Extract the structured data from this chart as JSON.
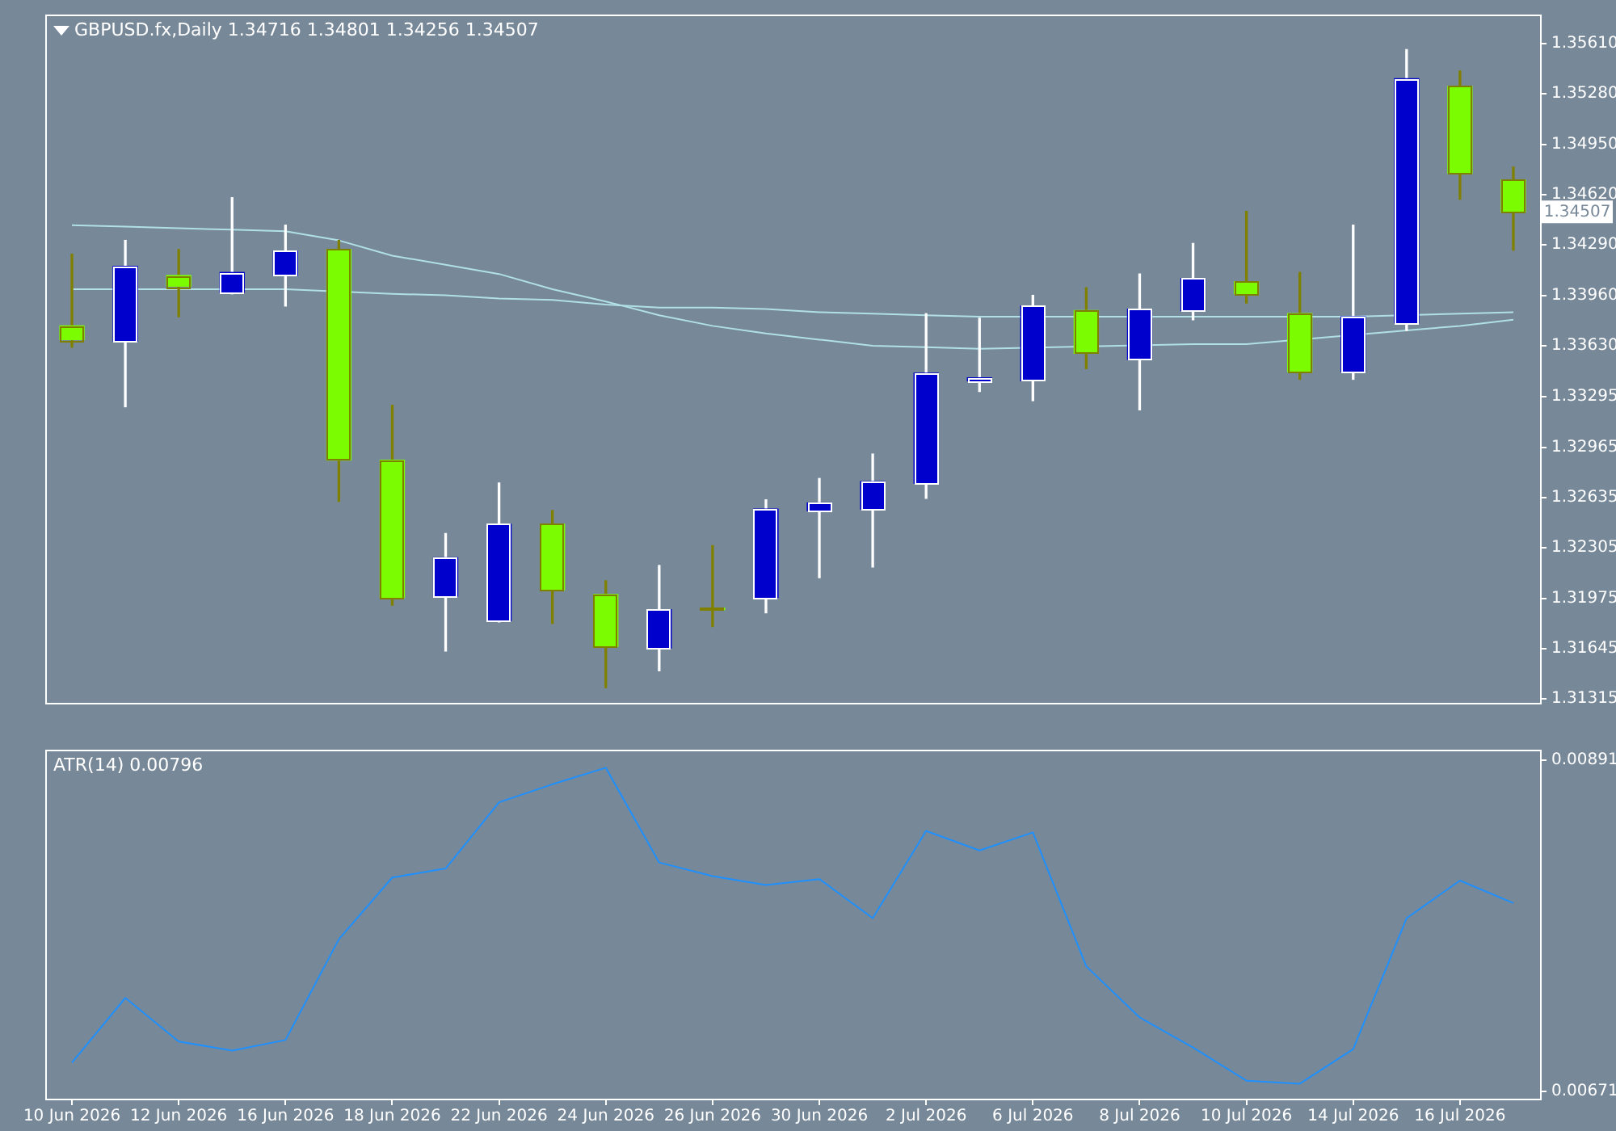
{
  "chart_data": [
    {
      "type": "candlestick",
      "title": "GBPUSD.fx,Daily 1.34716 1.34801 1.34256 1.34507",
      "grid": false,
      "categories": [
        null,
        null,
        null,
        null,
        null,
        null,
        null,
        null,
        null,
        null,
        null,
        null,
        null,
        null,
        null,
        null,
        null,
        null,
        null,
        null,
        null,
        null,
        null,
        null,
        null,
        null,
        null,
        null
      ],
      "ohlc": [
        [
          1.3376,
          1.3423,
          1.3362,
          1.3367
        ],
        [
          1.3366,
          1.3432,
          1.3323,
          1.3415
        ],
        [
          1.3409,
          1.3426,
          1.3382,
          1.3402
        ],
        [
          1.3398,
          1.346,
          1.3397,
          1.3411
        ],
        [
          1.3409,
          1.3442,
          1.3389,
          1.3425
        ],
        [
          1.3426,
          1.3432,
          1.3261,
          1.3288
        ],
        [
          1.3288,
          1.3324,
          1.3193,
          1.3198
        ],
        [
          1.3199,
          1.324,
          1.3163,
          1.3224
        ],
        [
          1.3183,
          1.3273,
          1.3182,
          1.3246
        ],
        [
          1.3246,
          1.3255,
          1.3181,
          1.3203
        ],
        [
          1.32,
          1.3209,
          1.3139,
          1.3166
        ],
        [
          1.3165,
          1.3219,
          1.315,
          1.319
        ],
        [
          1.3191,
          1.3232,
          1.3179,
          1.319
        ],
        [
          1.3198,
          1.3262,
          1.3188,
          1.3256
        ],
        [
          1.3255,
          1.3276,
          1.3211,
          1.326
        ],
        [
          1.3256,
          1.3292,
          1.3218,
          1.3274
        ],
        [
          1.3273,
          1.3384,
          1.3263,
          1.3345
        ],
        [
          1.334,
          1.3381,
          1.3333,
          1.3342
        ],
        [
          1.334,
          1.3396,
          1.3327,
          1.3389
        ],
        [
          1.3386,
          1.3401,
          1.3348,
          1.3358
        ],
        [
          1.3354,
          1.341,
          1.3321,
          1.3387
        ],
        [
          1.3386,
          1.343,
          1.338,
          1.3407
        ],
        [
          1.3405,
          1.3451,
          1.3391,
          1.3397
        ],
        [
          1.3384,
          1.3411,
          1.3341,
          1.3346
        ],
        [
          1.3346,
          1.3442,
          1.3341,
          1.3382
        ],
        [
          1.3378,
          1.3557,
          1.3373,
          1.3538
        ],
        [
          1.3533,
          1.3543,
          1.3459,
          1.3476
        ],
        [
          1.34716,
          1.34801,
          1.34256,
          1.34507
        ]
      ],
      "colors": [
        "#7cfc00",
        "#0000cd",
        "#7cfc00",
        "#0000cd",
        "#0000cd",
        "#7cfc00",
        "#7cfc00",
        "#0000cd",
        "#0000cd",
        "#7cfc00",
        "#7cfc00",
        "#0000cd",
        "#7cfc00",
        "#0000cd",
        "#0000cd",
        "#0000cd",
        "#0000cd",
        "#0000cd",
        "#0000cd",
        "#7cfc00",
        "#0000cd",
        "#0000cd",
        "#7cfc00",
        "#7cfc00",
        "#0000cd",
        "#0000cd",
        "#7cfc00",
        "#7cfc00"
      ],
      "series": [
        {
          "type": "line",
          "color": "#b0e0e6",
          "values": [
            1.3442,
            1.3441,
            1.344,
            1.3439,
            1.3438,
            1.3432,
            1.3422,
            1.3416,
            1.341,
            1.34,
            1.3392,
            1.3383,
            1.3376,
            1.3371,
            1.3367,
            1.3363,
            1.3362,
            1.3361,
            null,
            null,
            null,
            1.3364,
            1.3364,
            null,
            null,
            1.3373,
            1.3376,
            1.338
          ]
        },
        {
          "type": "line",
          "color": "#b0e0e6",
          "values": [
            1.34,
            null,
            1.34,
            1.34,
            1.34,
            null,
            1.3397,
            1.3396,
            1.3394,
            1.3393,
            1.339,
            1.3388,
            1.3388,
            1.3387,
            1.3385,
            1.3384,
            1.3383,
            1.3382,
            null,
            null,
            null,
            1.3382,
            1.3382,
            null,
            1.3382,
            null,
            1.3384,
            1.3385
          ]
        }
      ],
      "ylim": [
        1.3129,
        1.358
      ],
      "yticks": [
        {
          "value": 1.3561,
          "label": "1.35610"
        },
        {
          "value": 1.3528,
          "label": "1.35280"
        },
        {
          "value": 1.3495,
          "label": "1.34950"
        },
        {
          "value": 1.3462,
          "label": "1.34620"
        },
        {
          "value": 1.3429,
          "label": "1.34290"
        },
        {
          "value": 1.3396,
          "label": "1.33960"
        },
        {
          "value": 1.3363,
          "label": "1.33630"
        },
        1.33295,
        1.32965,
        1.32635,
        1.32305,
        1.31975,
        1.31645,
        1.31315
      ],
      "annotations": [
        {
          "text": "1.34507",
          "y": 1.34507
        }
      ]
    },
    {
      "type": "line",
      "title": "ATR(14) 0.00796",
      "grid": false,
      "categories": [
        "10 Jun 2026",
        null,
        "12 Jun 2026",
        null,
        "16 Jun 2026",
        null,
        "18 Jun 2026",
        null,
        "22 Jun 2026",
        null,
        "24 Jun 2026",
        null,
        "26 Jun 2026",
        null,
        "30 Jun 2026",
        null,
        "2 Jul 2026",
        null,
        "6 Jul 2026",
        null,
        "8 Jul 2026",
        null,
        "10 Jul 2026",
        null,
        "14 Jul 2026",
        null,
        "16 Jul 2026",
        null
      ],
      "series": [
        {
          "color": "#1e90ff",
          "values": [
            0.0069,
            0.00733,
            0.00704,
            0.00698,
            0.00705,
            0.00772,
            0.00813,
            0.00819,
            0.00863,
            0.00875,
            0.00886,
            0.00823,
            0.00814,
            0.00808,
            0.00812,
            0.00786,
            0.00844,
            0.00831,
            0.00843,
            0.00754,
            0.0072,
            0.007,
            0.00678,
            0.00676,
            0.00699,
            0.00786,
            0.00811,
            0.00796
          ]
        }
      ],
      "ylim": [
        0.00666,
        0.00898
      ],
      "yticks": [
        0.00891,
        0.00671
      ]
    }
  ]
}
